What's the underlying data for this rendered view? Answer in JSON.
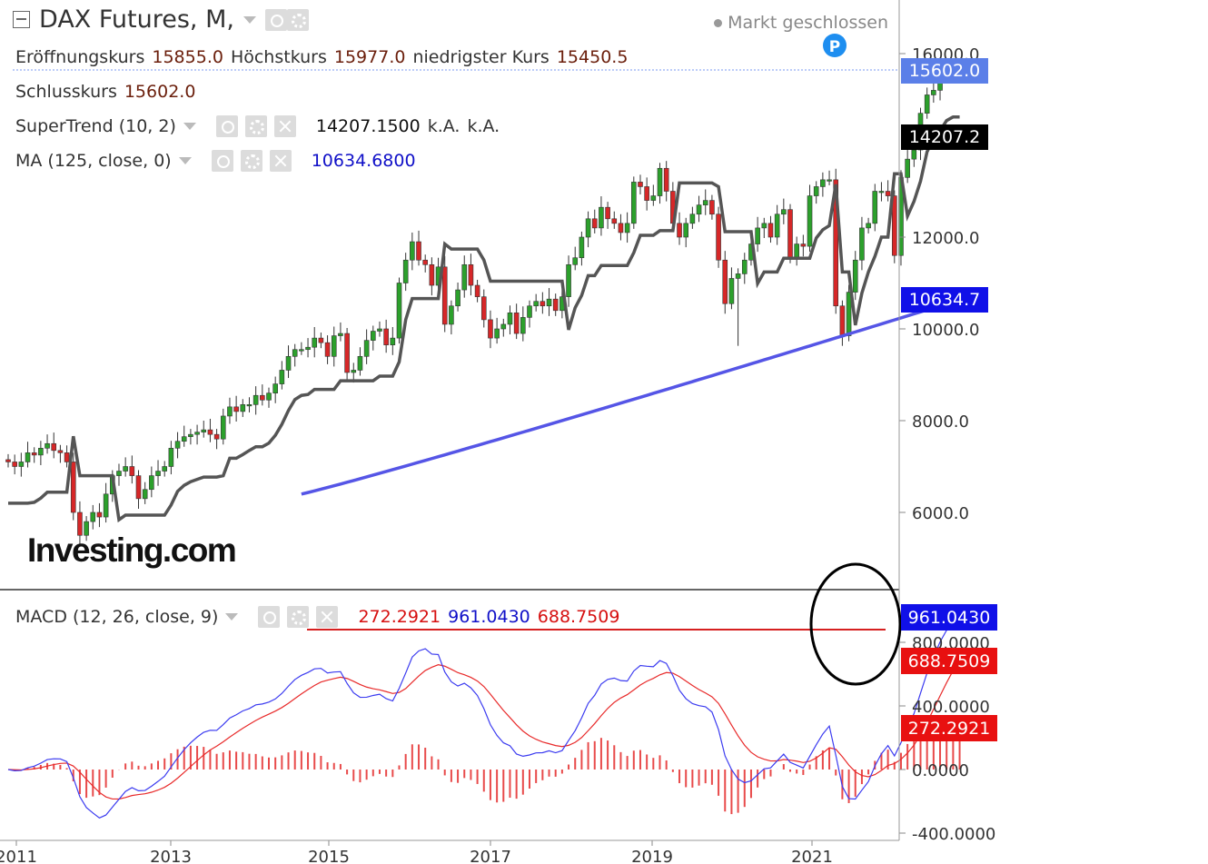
{
  "header": {
    "title": "DAX Futures, M,",
    "market_status": "Markt geschlossen",
    "open_label": "Eröffnungskurs",
    "open_value": "15855.0",
    "high_label": "Höchstkurs",
    "high_value": "15977.0",
    "low_label": "niedrigster Kurs",
    "low_value": "15450.5",
    "close_label": "Schlusskurs",
    "close_value": "15602.0",
    "supertrend_label": "SuperTrend (10, 2)",
    "supertrend_value": "14207.1500",
    "supertrend_na1": "k.A.",
    "supertrend_na2": "k.A.",
    "ma_label": "MA (125, close, 0)",
    "ma_value": "10634.6800",
    "macd_label": "MACD (12, 26, close, 9)",
    "macd_hist_value": "272.2921",
    "macd_line_value": "961.0430",
    "macd_signal_value": "688.7509",
    "marker_p": "P",
    "watermark": "Investing.com"
  },
  "price_axis": {
    "ticks": [
      "16000.0",
      "12000.0",
      "10000.0",
      "8000.0",
      "6000.0"
    ],
    "last_label": "15602.0",
    "supertrend_label": "14207.2",
    "ma_label": "10634.7"
  },
  "macd_axis": {
    "ticks": [
      "800.0000",
      "400.0000",
      "0.0000",
      "-400.0000"
    ],
    "macd_label": "961.0430",
    "signal_label": "688.7509",
    "hist_label": "272.2921"
  },
  "x_axis": {
    "ticks": [
      "2011",
      "2013",
      "2015",
      "2017",
      "2019",
      "2021"
    ]
  },
  "colors": {
    "up": "#2ca02c",
    "down": "#d62728",
    "supertrend": "#555555",
    "ma": "#5555e6",
    "macd": "#3b3bf0",
    "signal": "#e82a2a",
    "hist": "#e84a4a",
    "last_label_bg": "#5b7fe8",
    "supertrend_label_bg": "#000000",
    "ma_label_bg": "#1010e8",
    "macd_label_bg": "#1010e8",
    "signal_label_bg": "#e81010",
    "hist_label_bg": "#e81010"
  },
  "chart_data": [
    {
      "type": "candlestick",
      "title": "DAX Futures, M,",
      "x_range": [
        "2010-11",
        "2021-09"
      ],
      "ylim": [
        4000,
        16800
      ],
      "closes": [
        7100,
        7000,
        7100,
        7300,
        7250,
        7400,
        7500,
        7350,
        7300,
        7100,
        6000,
        5500,
        5800,
        6000,
        5900,
        6400,
        6800,
        6900,
        7000,
        6800,
        6300,
        6500,
        6800,
        6900,
        7000,
        7400,
        7550,
        7650,
        7700,
        7750,
        7800,
        7700,
        7600,
        8100,
        8300,
        8200,
        8350,
        8350,
        8550,
        8450,
        8600,
        8800,
        9100,
        9400,
        9550,
        9550,
        9600,
        9800,
        9700,
        9400,
        9850,
        9900,
        9050,
        9100,
        9400,
        9750,
        9950,
        10000,
        9650,
        9800,
        11000,
        11500,
        11900,
        11500,
        11400,
        10950,
        11350,
        10100,
        10500,
        10850,
        11400,
        10950,
        10700,
        10200,
        9800,
        10000,
        10100,
        10350,
        9900,
        10250,
        10500,
        10600,
        10500,
        10650,
        10400,
        10700,
        11400,
        11550,
        12000,
        12400,
        12200,
        12650,
        12400,
        12300,
        12100,
        12300,
        13200,
        13100,
        12800,
        12900,
        13500,
        13000,
        12300,
        12000,
        12300,
        12500,
        12700,
        12800,
        12500,
        11500,
        10550,
        11100,
        11200,
        11500,
        11850,
        12200,
        12300,
        12000,
        12500,
        12600,
        11550,
        11850,
        11800,
        12900,
        13100,
        13250,
        13250,
        10500,
        9850,
        10800,
        11500,
        12200,
        12300,
        13000,
        13000,
        12900,
        11600,
        13300,
        13700,
        13900,
        14700,
        15100,
        15200,
        15500,
        15600,
        15650,
        15600
      ]
    },
    {
      "type": "line",
      "series": [
        {
          "name": "SuperTrend (10, 2)",
          "last_value": 14207.15
        },
        {
          "name": "MA (125, close, 0)",
          "last_value": 10634.68
        }
      ]
    },
    {
      "type": "line",
      "title": "MACD (12, 26, close, 9)",
      "ylim": [
        -400,
        1000
      ],
      "series": [
        {
          "name": "MACD",
          "last_value": 961.043
        },
        {
          "name": "Signal",
          "last_value": 688.7509
        },
        {
          "name": "Histogram",
          "last_value": 272.2921
        }
      ]
    }
  ]
}
